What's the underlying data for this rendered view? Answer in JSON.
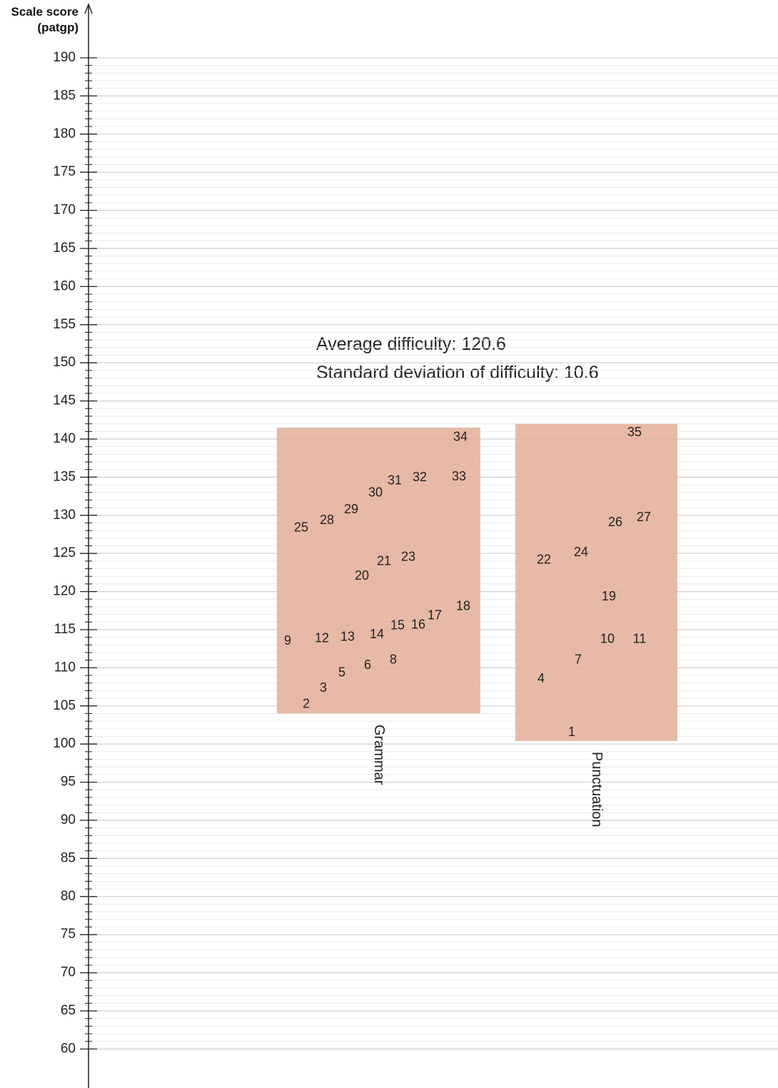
{
  "chart_data": {
    "type": "scatter",
    "ylabel_line1": "Scale score",
    "ylabel_line2": "(patgp)",
    "ylim": [
      60,
      190
    ],
    "y_ticks": [
      60,
      65,
      70,
      75,
      80,
      85,
      90,
      95,
      100,
      105,
      110,
      115,
      120,
      125,
      130,
      135,
      140,
      145,
      150,
      155,
      160,
      165,
      170,
      175,
      180,
      185,
      190
    ],
    "minor_tick_step": 1,
    "grid": true,
    "stats": {
      "average": "Average difficulty: 120.6",
      "sd": "Standard deviation of difficulty: 10.6"
    },
    "colors": {
      "box": "#e2b09a",
      "axis": "#222222",
      "grid": "#d9d9d9"
    },
    "groups": [
      {
        "name": "Grammar",
        "range": [
          104,
          141.5
        ],
        "items": [
          {
            "label": "2",
            "y": 105.2
          },
          {
            "label": "3",
            "y": 107.3
          },
          {
            "label": "5",
            "y": 109.3
          },
          {
            "label": "6",
            "y": 110.3
          },
          {
            "label": "8",
            "y": 111.0
          },
          {
            "label": "9",
            "y": 113.5
          },
          {
            "label": "12",
            "y": 113.8
          },
          {
            "label": "13",
            "y": 114.0
          },
          {
            "label": "14",
            "y": 114.3
          },
          {
            "label": "15",
            "y": 115.5
          },
          {
            "label": "16",
            "y": 115.6
          },
          {
            "label": "17",
            "y": 116.8
          },
          {
            "label": "18",
            "y": 118.0
          },
          {
            "label": "20",
            "y": 122.0
          },
          {
            "label": "21",
            "y": 123.9
          },
          {
            "label": "23",
            "y": 124.5
          },
          {
            "label": "25",
            "y": 128.3
          },
          {
            "label": "28",
            "y": 129.3
          },
          {
            "label": "29",
            "y": 130.7
          },
          {
            "label": "30",
            "y": 132.9
          },
          {
            "label": "31",
            "y": 134.5
          },
          {
            "label": "32",
            "y": 134.9
          },
          {
            "label": "33",
            "y": 135.0
          },
          {
            "label": "34",
            "y": 140.2
          }
        ]
      },
      {
        "name": "Punctuation",
        "range": [
          100.4,
          142
        ],
        "items": [
          {
            "label": "1",
            "y": 101.5
          },
          {
            "label": "4",
            "y": 108.5
          },
          {
            "label": "7",
            "y": 111.0
          },
          {
            "label": "10",
            "y": 113.7
          },
          {
            "label": "11",
            "y": 113.7
          },
          {
            "label": "19",
            "y": 119.3
          },
          {
            "label": "22",
            "y": 124.1
          },
          {
            "label": "24",
            "y": 125.1
          },
          {
            "label": "26",
            "y": 129.0
          },
          {
            "label": "27",
            "y": 129.7
          },
          {
            "label": "35",
            "y": 140.8
          }
        ]
      }
    ]
  }
}
